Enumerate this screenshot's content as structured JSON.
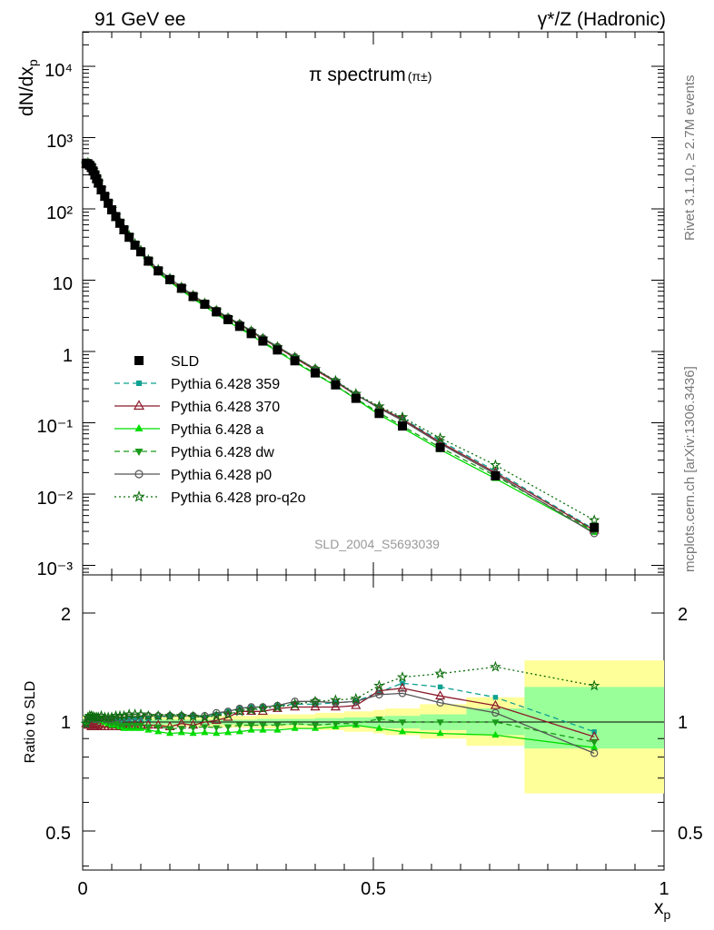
{
  "header": {
    "left": "91 GeV ee",
    "right": "γ*/Z (Hadronic)"
  },
  "side_text": {
    "rivet": "Rivet 3.1.10, ≥ 2.7M events",
    "mcplots": "mcplots.cern.ch [arXiv:1306.3436]"
  },
  "main": {
    "title": "π spectrum",
    "title_sub": "(π±)",
    "ylabel": "dN/dx",
    "ylabel_sub": "p",
    "analysis_id": "SLD_2004_S5693039",
    "ytick_labels": [
      "10⁴",
      "10³",
      "10²",
      "10",
      "1",
      "10⁻¹",
      "10⁻²",
      "10⁻³"
    ]
  },
  "ratio": {
    "ylabel": "Ratio to SLD",
    "ytick_labels": [
      "2",
      "1",
      "0.5"
    ]
  },
  "xaxis": {
    "label": "x",
    "label_sub": "p",
    "tick_labels": [
      "0",
      "0.5",
      "1"
    ]
  },
  "legend": [
    {
      "label": "SLD"
    },
    {
      "label": "Pythia 6.428 359"
    },
    {
      "label": "Pythia 6.428 370"
    },
    {
      "label": "Pythia 6.428 a"
    },
    {
      "label": "Pythia 6.428 dw"
    },
    {
      "label": "Pythia 6.428 p0"
    },
    {
      "label": "Pythia 6.428 pro-q2o"
    }
  ],
  "chart_data": [
    {
      "type": "scatter",
      "panel": "spectrum",
      "title": "π spectrum (π±)",
      "xlabel": "x_p",
      "ylabel": "dN/dx_p",
      "xlim": [
        0,
        1
      ],
      "ylim": [
        0.0007,
        30000
      ],
      "yscale": "log",
      "x": [
        0.006,
        0.009,
        0.012,
        0.015,
        0.018,
        0.021,
        0.024,
        0.027,
        0.032,
        0.038,
        0.044,
        0.05,
        0.057,
        0.064,
        0.071,
        0.08,
        0.09,
        0.1,
        0.113,
        0.13,
        0.15,
        0.17,
        0.19,
        0.21,
        0.23,
        0.25,
        0.27,
        0.29,
        0.31,
        0.335,
        0.365,
        0.4,
        0.435,
        0.47,
        0.51,
        0.55,
        0.615,
        0.71,
        0.88
      ],
      "series": [
        {
          "name": "SLD",
          "color": "#000000",
          "marker": "square",
          "values": [
            430,
            430,
            410,
            380,
            340,
            300,
            265,
            230,
            185,
            150,
            120,
            97,
            78,
            63,
            51,
            40,
            31,
            25,
            18.5,
            13.5,
            10.2,
            7.7,
            5.9,
            4.6,
            3.6,
            2.8,
            2.25,
            1.78,
            1.4,
            1.05,
            0.74,
            0.5,
            0.34,
            0.22,
            0.135,
            0.09,
            0.045,
            0.018,
            0.0034
          ]
        },
        {
          "name": "Pythia 6.428 359",
          "color": "#0fa191",
          "marker": "small-square",
          "dash": "6,4",
          "values": [
            420,
            435,
            415,
            385,
            345,
            305,
            270,
            232,
            187,
            151,
            121,
            98,
            79,
            64,
            52,
            41,
            31.6,
            25.5,
            18.9,
            13.9,
            10.6,
            8.0,
            6.1,
            4.7,
            3.8,
            3.0,
            2.45,
            1.95,
            1.54,
            1.17,
            0.83,
            0.56,
            0.385,
            0.25,
            0.163,
            0.115,
            0.056,
            0.021,
            0.0032
          ]
        },
        {
          "name": "Pythia 6.428 370",
          "color": "#8b1a2a",
          "marker": "open-triangle",
          "dash": "",
          "values": [
            425,
            420,
            400,
            370,
            330,
            292,
            258,
            225,
            180,
            146,
            117,
            95,
            76,
            61,
            49.5,
            39,
            30.3,
            24.5,
            18.1,
            13.2,
            9.9,
            7.6,
            5.8,
            4.6,
            3.65,
            2.9,
            2.4,
            1.9,
            1.5,
            1.14,
            0.81,
            0.55,
            0.375,
            0.245,
            0.165,
            0.112,
            0.053,
            0.02,
            0.0031
          ]
        },
        {
          "name": "Pythia 6.428 a",
          "color": "#00dd00",
          "marker": "triangle",
          "dash": "",
          "values": [
            430,
            440,
            420,
            390,
            347,
            305,
            268,
            232,
            187,
            150,
            119,
            95,
            76,
            61,
            49,
            38.5,
            29.8,
            24,
            17.5,
            12.7,
            9.5,
            7.2,
            5.5,
            4.3,
            3.35,
            2.62,
            2.12,
            1.69,
            1.33,
            1.0,
            0.71,
            0.48,
            0.33,
            0.215,
            0.13,
            0.085,
            0.042,
            0.0165,
            0.0029
          ]
        },
        {
          "name": "Pythia 6.428 dw",
          "color": "#1a9a1a",
          "marker": "triangle-down",
          "dash": "6,4",
          "values": [
            430,
            440,
            420,
            390,
            348,
            306,
            269,
            233,
            188,
            151,
            120,
            96,
            77,
            62,
            50,
            39.2,
            30.4,
            24.5,
            17.9,
            13.1,
            9.8,
            7.4,
            5.7,
            4.45,
            3.48,
            2.72,
            2.2,
            1.74,
            1.37,
            1.03,
            0.73,
            0.49,
            0.335,
            0.218,
            0.138,
            0.09,
            0.045,
            0.018,
            0.003
          ]
        },
        {
          "name": "Pythia 6.428 p0",
          "color": "#555555",
          "marker": "open-circle",
          "dash": "",
          "values": [
            425,
            440,
            420,
            390,
            348,
            307,
            271,
            235,
            190,
            153,
            123,
            99,
            80,
            65,
            52.5,
            41.5,
            32,
            26,
            19.3,
            14.1,
            10.6,
            8.0,
            6.15,
            4.8,
            3.8,
            3.0,
            2.45,
            1.95,
            1.54,
            1.17,
            0.84,
            0.57,
            0.385,
            0.25,
            0.16,
            0.108,
            0.051,
            0.019,
            0.0028
          ]
        },
        {
          "name": "Pythia 6.428 pro-q2o",
          "color": "#0d6e0d",
          "marker": "open-star",
          "dash": "2,3",
          "values": [
            425,
            445,
            425,
            395,
            352,
            310,
            273,
            237,
            192,
            155,
            124,
            100,
            81,
            65.5,
            53,
            42,
            32.5,
            26.2,
            19.3,
            14.1,
            10.6,
            8.0,
            6.1,
            4.75,
            3.75,
            2.95,
            2.4,
            1.93,
            1.52,
            1.16,
            0.83,
            0.57,
            0.39,
            0.255,
            0.17,
            0.12,
            0.061,
            0.0255,
            0.0043
          ]
        }
      ]
    },
    {
      "type": "line",
      "panel": "ratio",
      "xlabel": "x_p",
      "ylabel": "Ratio to SLD",
      "xlim": [
        0,
        1
      ],
      "ylim": [
        0.35,
        2.3
      ],
      "yscale": "log",
      "uncertainty_bands": {
        "edges": [
          0.0,
          0.1,
          0.2,
          0.3,
          0.4,
          0.45,
          0.5,
          0.52,
          0.58,
          0.66,
          0.76,
          1.0
        ],
        "stat": [
          [
            0.98,
            1.02
          ],
          [
            0.985,
            1.015
          ],
          [
            0.985,
            1.015
          ],
          [
            0.98,
            1.02
          ],
          [
            0.975,
            1.025
          ],
          [
            0.97,
            1.03
          ],
          [
            0.965,
            1.035
          ],
          [
            0.96,
            1.04
          ],
          [
            0.95,
            1.05
          ],
          [
            0.92,
            1.09
          ],
          [
            0.845,
            1.25
          ]
        ],
        "total": [
          [
            0.96,
            1.04
          ],
          [
            0.97,
            1.04
          ],
          [
            0.965,
            1.04
          ],
          [
            0.96,
            1.05
          ],
          [
            0.95,
            1.06
          ],
          [
            0.94,
            1.07
          ],
          [
            0.93,
            1.08
          ],
          [
            0.92,
            1.09
          ],
          [
            0.9,
            1.12
          ],
          [
            0.86,
            1.17
          ],
          [
            0.635,
            1.48
          ]
        ]
      },
      "x": [
        0.006,
        0.009,
        0.012,
        0.015,
        0.018,
        0.021,
        0.024,
        0.027,
        0.032,
        0.038,
        0.044,
        0.05,
        0.057,
        0.064,
        0.071,
        0.08,
        0.09,
        0.1,
        0.113,
        0.13,
        0.15,
        0.17,
        0.19,
        0.21,
        0.23,
        0.25,
        0.27,
        0.29,
        0.31,
        0.335,
        0.365,
        0.4,
        0.435,
        0.47,
        0.51,
        0.55,
        0.615,
        0.71,
        0.88
      ],
      "series": [
        {
          "name": "Pythia 6.428 359",
          "values": [
            0.98,
            1.01,
            1.01,
            1.01,
            1.01,
            1.02,
            1.02,
            1.01,
            1.01,
            1.01,
            1.01,
            1.01,
            1.01,
            1.01,
            1.02,
            1.02,
            1.02,
            1.02,
            1.02,
            1.03,
            1.04,
            1.04,
            1.04,
            1.03,
            1.05,
            1.07,
            1.09,
            1.1,
            1.1,
            1.11,
            1.12,
            1.12,
            1.13,
            1.14,
            1.21,
            1.28,
            1.25,
            1.17,
            0.94
          ]
        },
        {
          "name": "Pythia 6.428 370",
          "values": [
            0.99,
            0.98,
            0.98,
            0.97,
            0.97,
            0.97,
            0.97,
            0.98,
            0.97,
            0.97,
            0.97,
            0.98,
            0.97,
            0.97,
            0.97,
            0.975,
            0.977,
            0.98,
            0.98,
            0.98,
            0.97,
            0.99,
            0.98,
            1.0,
            1.01,
            1.03,
            1.07,
            1.07,
            1.07,
            1.09,
            1.1,
            1.1,
            1.1,
            1.11,
            1.22,
            1.24,
            1.18,
            1.11,
            0.91
          ]
        },
        {
          "name": "Pythia 6.428 a",
          "values": [
            1.0,
            1.02,
            1.02,
            1.03,
            1.02,
            1.02,
            1.01,
            1.01,
            1.01,
            1.0,
            0.99,
            0.98,
            0.98,
            0.97,
            0.96,
            0.96,
            0.96,
            0.96,
            0.95,
            0.94,
            0.93,
            0.935,
            0.93,
            0.935,
            0.93,
            0.935,
            0.94,
            0.95,
            0.95,
            0.95,
            0.96,
            0.96,
            0.97,
            0.98,
            0.96,
            0.94,
            0.93,
            0.92,
            0.85
          ]
        },
        {
          "name": "Pythia 6.428 dw",
          "values": [
            1.0,
            1.02,
            1.02,
            1.03,
            1.02,
            1.02,
            1.02,
            1.01,
            1.02,
            1.01,
            1.0,
            0.99,
            0.99,
            0.98,
            0.98,
            0.98,
            0.98,
            0.98,
            0.97,
            0.97,
            0.96,
            0.96,
            0.965,
            0.97,
            0.965,
            0.97,
            0.98,
            0.98,
            0.98,
            0.98,
            0.99,
            0.98,
            0.99,
            0.99,
            1.02,
            1.0,
            1.0,
            1.0,
            0.88
          ]
        },
        {
          "name": "Pythia 6.428 p0",
          "values": [
            0.99,
            1.02,
            1.02,
            1.03,
            1.02,
            1.02,
            1.02,
            1.02,
            1.03,
            1.02,
            1.02,
            1.02,
            1.03,
            1.03,
            1.03,
            1.04,
            1.03,
            1.04,
            1.04,
            1.04,
            1.04,
            1.04,
            1.04,
            1.04,
            1.06,
            1.07,
            1.09,
            1.1,
            1.1,
            1.11,
            1.14,
            1.14,
            1.13,
            1.14,
            1.19,
            1.2,
            1.13,
            1.06,
            0.82
          ]
        },
        {
          "name": "Pythia 6.428 pro-q2o",
          "values": [
            0.99,
            1.03,
            1.04,
            1.04,
            1.035,
            1.03,
            1.03,
            1.03,
            1.04,
            1.03,
            1.03,
            1.03,
            1.04,
            1.04,
            1.04,
            1.05,
            1.05,
            1.05,
            1.04,
            1.04,
            1.04,
            1.04,
            1.035,
            1.03,
            1.04,
            1.05,
            1.07,
            1.08,
            1.09,
            1.1,
            1.12,
            1.14,
            1.15,
            1.16,
            1.26,
            1.33,
            1.36,
            1.42,
            1.26
          ]
        }
      ]
    }
  ]
}
